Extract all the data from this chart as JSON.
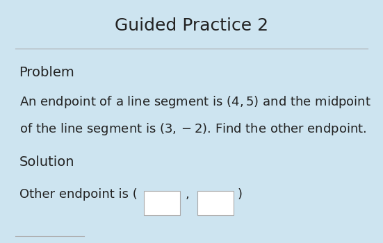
{
  "title": "Guided Practice 2",
  "bg_color": "#cde4f0",
  "title_fontsize": 18,
  "title_color": "#222222",
  "problem_label": "Problem",
  "solution_label": "Solution",
  "box_color": "#ffffff",
  "separator_color": "#aaaaaa",
  "text_color": "#222222",
  "label_fontsize": 14,
  "body_fontsize": 13
}
